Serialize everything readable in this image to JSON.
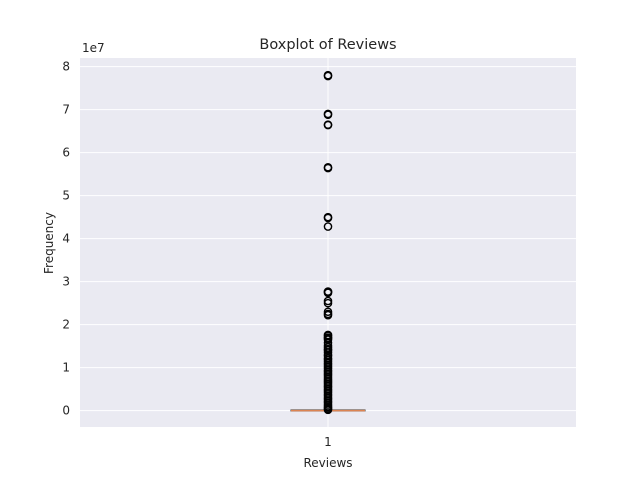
{
  "chart_data": {
    "type": "boxplot",
    "title": "Boxplot of Reviews",
    "xlabel": "Reviews",
    "ylabel": "Frequency",
    "y_offset_text": "1e7",
    "categories": [
      "1"
    ],
    "y_ticks": [
      0,
      1,
      2,
      3,
      4,
      5,
      6,
      7,
      8
    ],
    "ylim": [
      -0.38,
      8.2
    ],
    "grid": true,
    "colors": {
      "background": "#eaeaf2",
      "grid": "#ffffff",
      "median": "#dd8452",
      "outlier": "#000000"
    },
    "box": {
      "min": 0,
      "q1": 0.0002,
      "median": 0.0005,
      "q3": 0.005,
      "max": 0.012
    },
    "outliers": [
      7.8,
      7.78,
      6.9,
      6.88,
      6.65,
      6.64,
      5.66,
      5.64,
      4.5,
      4.48,
      4.28,
      2.77,
      2.76,
      2.74,
      2.55,
      2.5,
      2.3,
      2.25,
      2.22,
      1.76,
      1.74,
      1.7,
      1.68,
      1.65,
      1.58,
      1.52,
      1.47,
      1.43,
      1.4,
      1.35,
      1.3,
      1.27,
      1.22,
      1.18,
      1.14,
      1.1,
      1.06,
      1.02,
      0.98,
      0.94,
      0.9,
      0.86,
      0.82,
      0.78,
      0.74,
      0.7,
      0.66,
      0.62,
      0.58,
      0.54,
      0.5,
      0.46,
      0.42,
      0.38,
      0.34,
      0.3,
      0.26,
      0.22,
      0.18,
      0.14,
      0.1,
      0.07,
      0.04,
      0.02
    ]
  }
}
